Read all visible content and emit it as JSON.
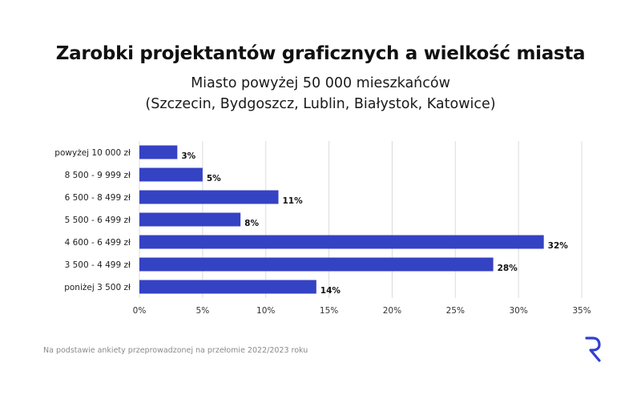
{
  "title": "Zarobki projektantów graficznych a wielkość miasta",
  "subtitle_line1": "Miasto powyżej 50 000 mieszkańców",
  "subtitle_line2": "(Szczecin, Bydgoszcz, Lublin, Białystok, Katowice)",
  "footnote": "Na podstawie ankiety przeprowadzonej na przełomie 2022/2023 roku",
  "logo_icon": "r-logo-icon",
  "colors": {
    "bar": "#3442c4",
    "grid": "#dcdcdc",
    "logo": "#2f3fd0"
  },
  "chart_data": {
    "type": "bar",
    "orientation": "horizontal",
    "categories": [
      "powyżej 10 000 zł",
      "8 500 - 9 999 zł",
      "6 500 - 8 499 zł",
      "5 500 - 6 499 zł",
      "4 600 - 6 499 zł",
      "3 500 - 4 499 zł",
      "poniżej 3 500 zł"
    ],
    "values": [
      3,
      5,
      11,
      8,
      32,
      28,
      14
    ],
    "value_labels": [
      "3%",
      "5%",
      "11%",
      "8%",
      "32%",
      "28%",
      "14%"
    ],
    "xlim": [
      0,
      35
    ],
    "xticks": [
      0,
      5,
      10,
      15,
      20,
      25,
      30,
      35
    ],
    "xtick_labels": [
      "0%",
      "5%",
      "10%",
      "15%",
      "20%",
      "25%",
      "30%",
      "35%"
    ],
    "grid": true,
    "legend": "none"
  }
}
